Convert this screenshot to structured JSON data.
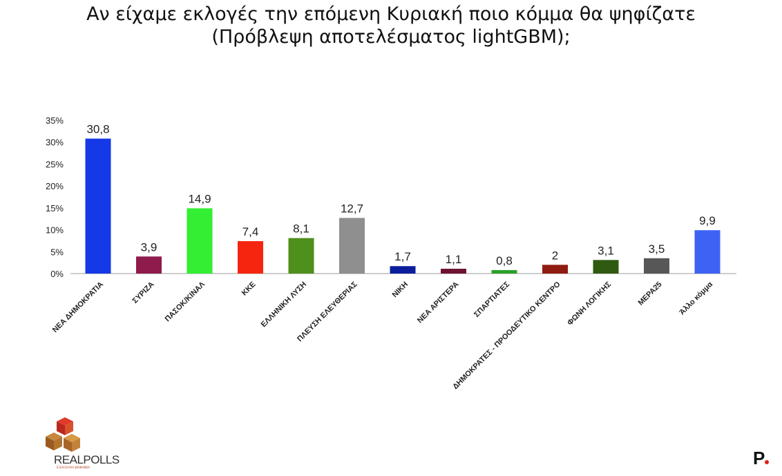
{
  "title_line1": "Αν είχαμε εκλογές την επόμενη Κυριακή ποιο κόμμα θα ψηφίζατε",
  "title_line2": "(Πρόβλεψη αποτελέσματος lightGBM);",
  "logo": {
    "text": "REALPOLLS",
    "tagline": "ΕΞΕΛΙΞΗ ΚΑΙ ΔΙΑΦΑΝΕΙΑ"
  },
  "corner_mark": "P",
  "chart_data": {
    "type": "bar",
    "title": "Αν είχαμε εκλογές την επόμενη Κυριακή ποιο κόμμα θα ψηφίζατε (Πρόβλεψη αποτελέσματος lightGBM);",
    "xlabel": "",
    "ylabel": "",
    "ylim": [
      0,
      35
    ],
    "yticks": [
      "0%",
      "5%",
      "10%",
      "15%",
      "20%",
      "25%",
      "30%",
      "35%"
    ],
    "grid": false,
    "categories": [
      "ΝΕΑ ΔΗΜΟΚΡΑΤΙΑ",
      "ΣΥΡΙΖΑ",
      "ΠΑΣΟΚ/ΚΙΝΑΛ",
      "ΚΚΕ",
      "ΕΛΛΗΝΙΚΗ ΛΥΣΗ",
      "ΠΛΕΥΣΗ ΕΛΕΥΘΕΡΙΑΣ",
      "ΝΙΚΗ",
      "ΝΕΑ ΑΡΙΣΤΕΡΑ",
      "ΣΠΑΡΤΙΑΤΕΣ",
      "ΔΗΜΟΚΡΑΤΕΣ - ΠΡΟΟΔΕΥΤΙΚΟ ΚΕΝΤΡΟ",
      "ΦΩΝΗ ΛΟΓΙΚΗΣ",
      "ΜΕΡΑ25",
      "Άλλο κόμμα"
    ],
    "values": [
      30.8,
      3.9,
      14.9,
      7.4,
      8.1,
      12.7,
      1.7,
      1.1,
      0.8,
      2,
      3.1,
      3.5,
      9.9
    ],
    "value_labels": [
      "30,8",
      "3,9",
      "14,9",
      "7,4",
      "8,1",
      "12,7",
      "1,7",
      "1,1",
      "0,8",
      "2",
      "3,1",
      "3,5",
      "9,9"
    ],
    "colors": [
      "#1539e6",
      "#8e1b4b",
      "#33ee33",
      "#f5250f",
      "#4f8f1c",
      "#8f8f8f",
      "#0b1e9c",
      "#6e1232",
      "#2aa02a",
      "#8f1c10",
      "#2f5a10",
      "#575757",
      "#3d63f5"
    ]
  }
}
